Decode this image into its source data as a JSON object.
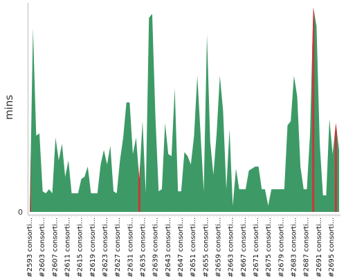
{
  "chart_data": {
    "type": "area",
    "title": "",
    "xlabel": "",
    "ylabel": "mins",
    "y_ticks": [
      "0"
    ],
    "ylim": [
      0,
      100
    ],
    "grid": false,
    "legend": "none",
    "colors": {
      "area": "#3d9a66",
      "highlight": "#c8373a",
      "axis": "#bbbbbb"
    },
    "x_tick_labels": [
      "#2593 consorti...",
      "#2603 consorti...",
      "#2607 consorti...",
      "#2611 consorti...",
      "#2615 consorti...",
      "#2619 consorti...",
      "#2623 consorti...",
      "#2627 consorti...",
      "#2631 consorti...",
      "#2635 consorti...",
      "#2639 consorti...",
      "#2643 consorti...",
      "#2647 consorti...",
      "#2651 consorti...",
      "#2655 consorti...",
      "#2659 consorti...",
      "#2663 consorti...",
      "#2667 consorti...",
      "#2671 consorti...",
      "#2675 consorti...",
      "#2679 consorti...",
      "#2683 consorti...",
      "#2687 consorti...",
      "#2691 consorti...",
      "#2695 consorti..."
    ],
    "series": [
      {
        "values": [
          0,
          89,
          37,
          38,
          10,
          9,
          11,
          9,
          36,
          25,
          33,
          17,
          25,
          9,
          9,
          9,
          16,
          17,
          22,
          9,
          9,
          9,
          23,
          30,
          23,
          32,
          10,
          9,
          25,
          36,
          53,
          53,
          28,
          36,
          16,
          44,
          9,
          94,
          96,
          46,
          10,
          11,
          43,
          28,
          27,
          60,
          10,
          10,
          29,
          27,
          23,
          37,
          66,
          38,
          10,
          86,
          34,
          18,
          38,
          66,
          49,
          11,
          40,
          3,
          21,
          11,
          11,
          11,
          20,
          21,
          22,
          22,
          11,
          11,
          3,
          11,
          11,
          11,
          11,
          11,
          42,
          44,
          66,
          56,
          22,
          11,
          11,
          38,
          99,
          90,
          33,
          8,
          8,
          45,
          28,
          43,
          30
        ],
        "highlight": [
          0,
          34,
          88,
          95
        ]
      }
    ]
  }
}
